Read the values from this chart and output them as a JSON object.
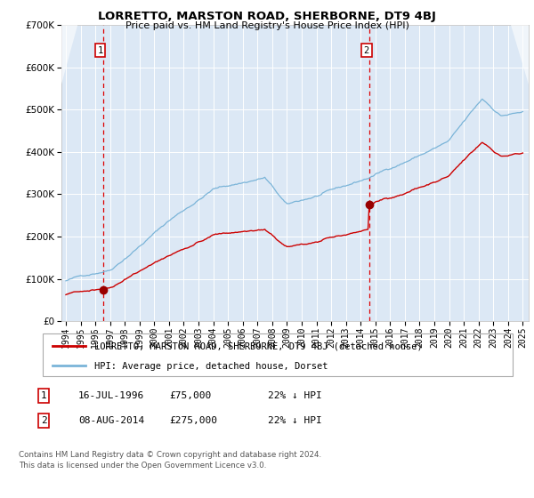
{
  "title": "LORRETTO, MARSTON ROAD, SHERBORNE, DT9 4BJ",
  "subtitle": "Price paid vs. HM Land Registry's House Price Index (HPI)",
  "legend_line1": "LORRETTO, MARSTON ROAD, SHERBORNE, DT9 4BJ (detached house)",
  "legend_line2": "HPI: Average price, detached house, Dorset",
  "annotation1_date": "16-JUL-1996",
  "annotation1_price": "£75,000",
  "annotation1_hpi": "22% ↓ HPI",
  "annotation2_date": "08-AUG-2014",
  "annotation2_price": "£275,000",
  "annotation2_hpi": "22% ↓ HPI",
  "footer": "Contains HM Land Registry data © Crown copyright and database right 2024.\nThis data is licensed under the Open Government Licence v3.0.",
  "sale1_year": 1996.54,
  "sale1_value": 75000,
  "sale2_year": 2014.6,
  "sale2_value": 275000,
  "vline1_year": 1996.54,
  "vline2_year": 2014.6,
  "hpi_color": "#7ab4d8",
  "price_color": "#cc0000",
  "vline_color": "#dd0000",
  "plot_bg": "#dce8f5",
  "grid_color": "#ffffff",
  "hatch_color": "#c8d8e8",
  "ylim_max": 700000,
  "xlabel_years": [
    1994,
    1995,
    1996,
    1997,
    1998,
    1999,
    2000,
    2001,
    2002,
    2003,
    2004,
    2005,
    2006,
    2007,
    2008,
    2009,
    2010,
    2011,
    2012,
    2013,
    2014,
    2015,
    2016,
    2017,
    2018,
    2019,
    2020,
    2021,
    2022,
    2023,
    2024,
    2025
  ]
}
